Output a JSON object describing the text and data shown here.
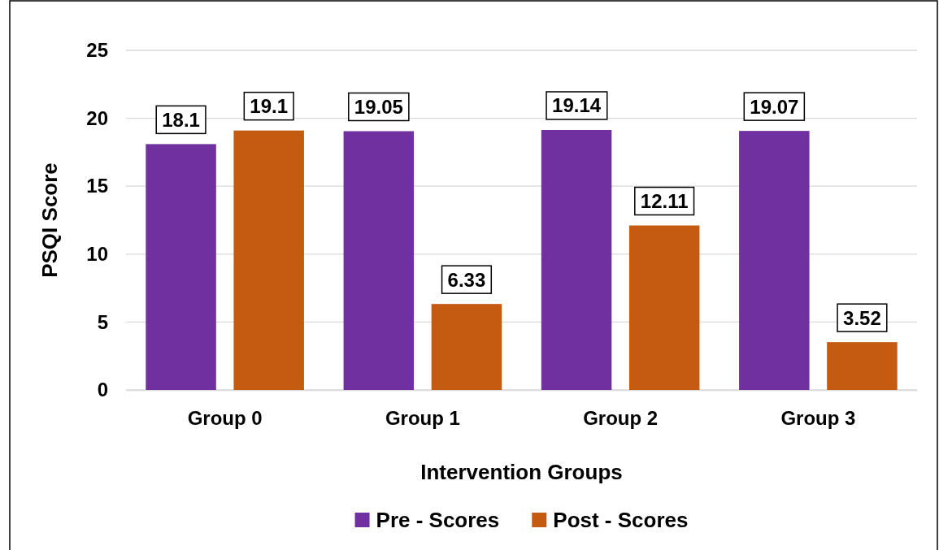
{
  "chart_data": {
    "type": "bar",
    "xlabel": "Intervention Groups",
    "ylabel": "PSQI Score",
    "categories": [
      "Group 0",
      "Group 1",
      "Group 2",
      "Group 3"
    ],
    "series": [
      {
        "name": "Pre - Scores",
        "color": "#7030a0",
        "values": [
          18.1,
          19.05,
          19.14,
          19.07
        ]
      },
      {
        "name": "Post - Scores",
        "color": "#c55a11",
        "values": [
          19.1,
          6.33,
          12.11,
          3.52
        ]
      }
    ],
    "ylim": [
      0,
      25
    ],
    "yticks": [
      0,
      5,
      10,
      15,
      20,
      25
    ],
    "grid": "y",
    "legend": "bottom",
    "data_labels": true
  }
}
